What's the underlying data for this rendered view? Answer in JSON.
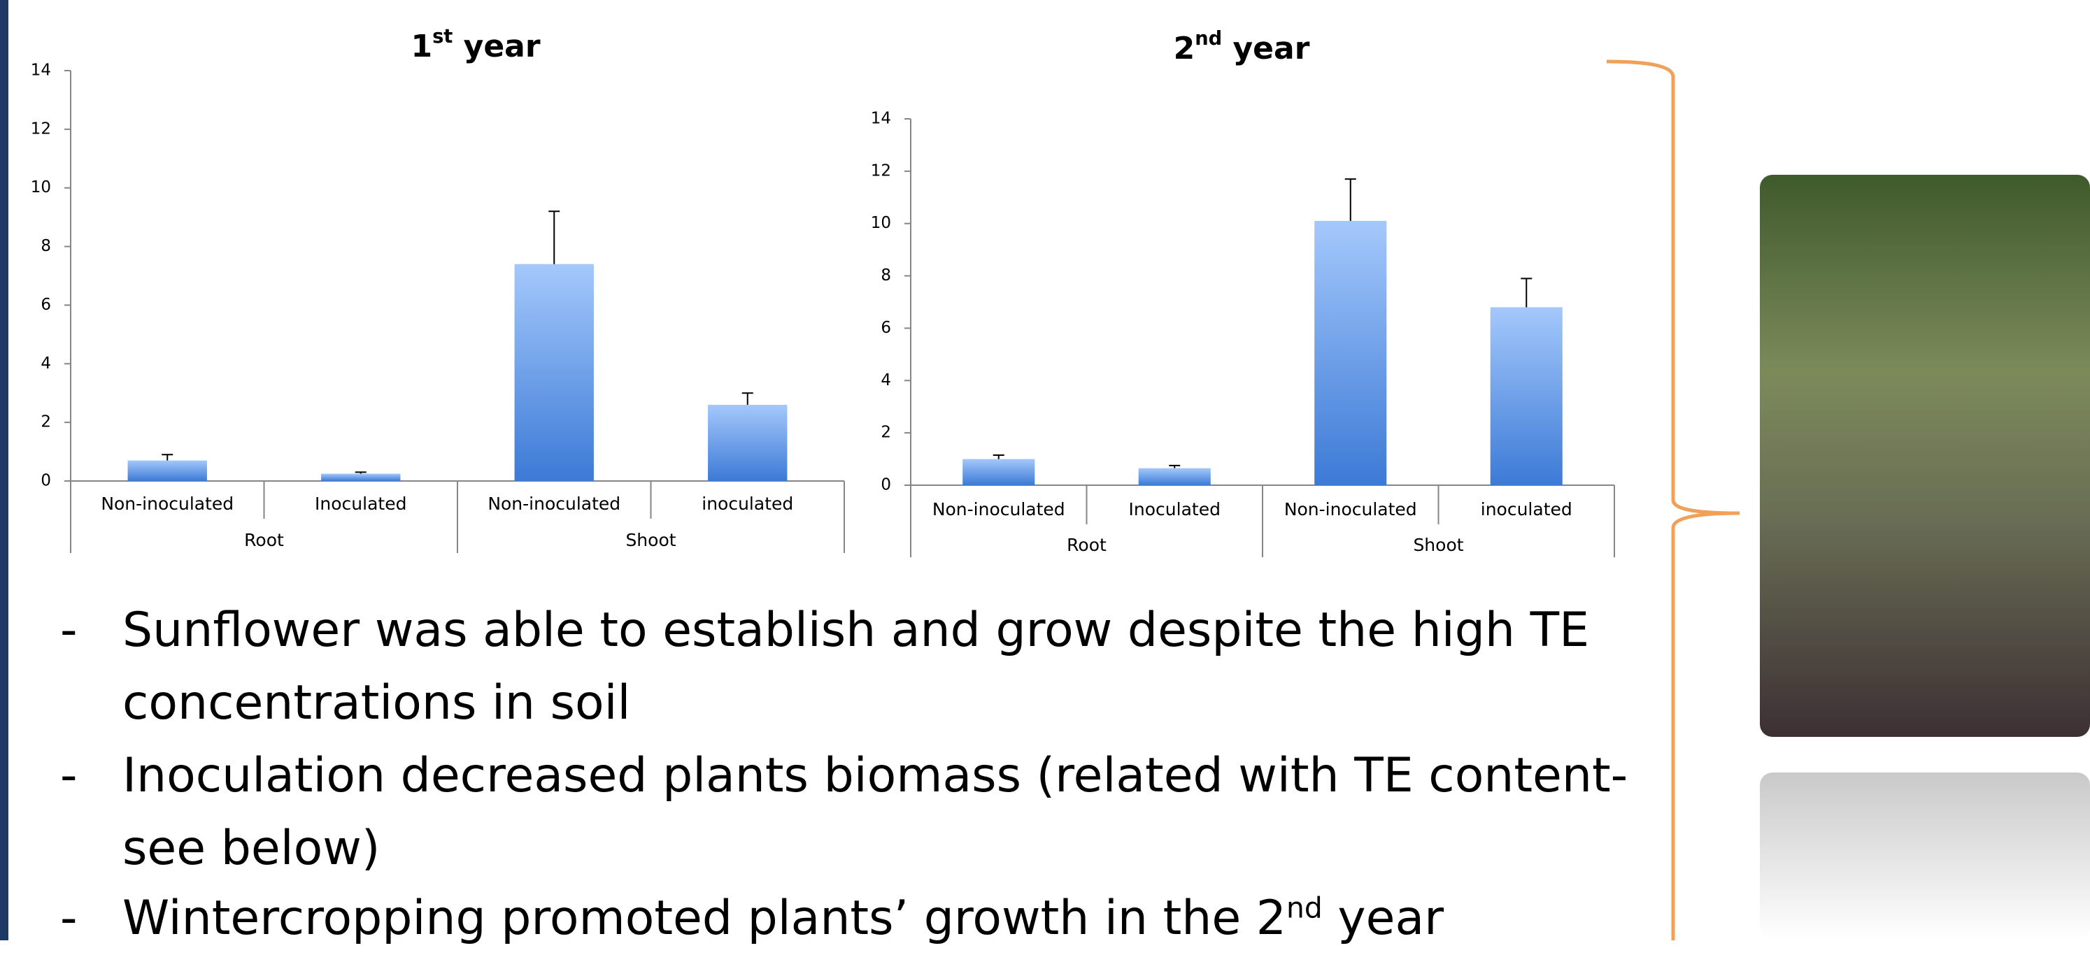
{
  "chart_data": [
    {
      "type": "bar",
      "title": "1st year",
      "categories": [
        "Non-inoculated",
        "Inoculated",
        "Non-inoculated",
        "inoculated"
      ],
      "groups": [
        "Root",
        "Shoot"
      ],
      "values": [
        0.7,
        0.25,
        7.4,
        2.6
      ],
      "errors": [
        0.2,
        0.05,
        1.8,
        0.4
      ],
      "ylim": [
        0,
        14
      ],
      "yticks": [
        0,
        2,
        4,
        6,
        8,
        10,
        12,
        14
      ]
    },
    {
      "type": "bar",
      "title": "2nd year",
      "categories": [
        "Non-inoculated",
        "Inoculated",
        "Non-inoculated",
        "inoculated"
      ],
      "groups": [
        "Root",
        "Shoot"
      ],
      "values": [
        1.0,
        0.65,
        10.1,
        6.8
      ],
      "errors": [
        0.15,
        0.1,
        1.6,
        1.1
      ],
      "ylim": [
        0,
        14
      ],
      "yticks": [
        0,
        2,
        4,
        6,
        8,
        10,
        12,
        14
      ]
    }
  ],
  "bullets": [
    {
      "dash": "-",
      "text": "Sunflower was able to establish and grow despite the high TE concentrations in soil"
    },
    {
      "dash": "-",
      "text": "Inoculation decreased plants biomass (related with TE content- see below)"
    },
    {
      "dash": "-",
      "text": "Wintercropping promoted plants’ growth in the 2nd year"
    }
  ]
}
